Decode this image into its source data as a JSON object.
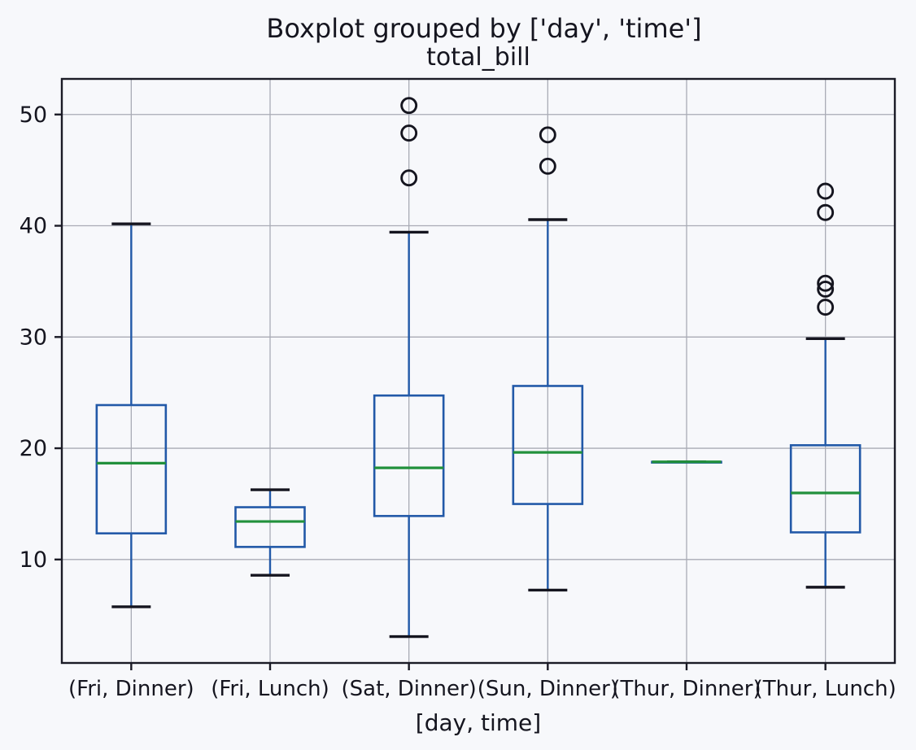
{
  "figure": {
    "title": "Boxplot grouped by ['day', 'time']",
    "subtitle": "total_bill",
    "xlabel": "[day, time]"
  },
  "chart_data": {
    "type": "boxplot",
    "title": "Boxplot grouped by ['day', 'time']",
    "subtitle": "total_bill",
    "xlabel": "[day, time]",
    "ylabel": "",
    "ylim": [
      0.7,
      53.2
    ],
    "yticks": [
      10,
      20,
      30,
      40,
      50
    ],
    "grid": true,
    "legend": "none",
    "categories": [
      "(Fri, Dinner)",
      "(Fri, Lunch)",
      "(Sat, Dinner)",
      "(Sun, Dinner)",
      "(Thur, Dinner)",
      "(Thur, Lunch)"
    ],
    "series": [
      {
        "label": "(Fri, Dinner)",
        "whisker_low": 5.75,
        "q1": 12.35,
        "median": 18.66,
        "q3": 23.88,
        "whisker_high": 40.17,
        "outliers": []
      },
      {
        "label": "(Fri, Lunch)",
        "whisker_low": 8.58,
        "q1": 11.13,
        "median": 13.42,
        "q3": 14.7,
        "whisker_high": 16.27,
        "outliers": []
      },
      {
        "label": "(Sat, Dinner)",
        "whisker_low": 3.07,
        "q1": 13.91,
        "median": 18.24,
        "q3": 24.74,
        "whisker_high": 39.42,
        "outliers": [
          44.3,
          48.33,
          50.81
        ]
      },
      {
        "label": "(Sun, Dinner)",
        "whisker_low": 7.25,
        "q1": 14.99,
        "median": 19.63,
        "q3": 25.6,
        "whisker_high": 40.55,
        "outliers": [
          45.35,
          48.17
        ]
      },
      {
        "label": "(Thur, Dinner)",
        "whisker_low": 18.78,
        "q1": 18.78,
        "median": 18.78,
        "q3": 18.78,
        "whisker_high": 18.78,
        "outliers": []
      },
      {
        "label": "(Thur, Lunch)",
        "whisker_low": 7.51,
        "q1": 12.44,
        "median": 15.98,
        "q3": 20.27,
        "whisker_high": 29.85,
        "outliers": [
          32.68,
          34.3,
          34.83,
          41.19,
          43.11
        ]
      }
    ],
    "colors": {
      "box": "#2259a8",
      "whisker": "#2259a8",
      "median": "#22913c",
      "cap": "#15151f",
      "outlier": "#15151f",
      "grid": "#a9abb5",
      "spine": "#1b1b26",
      "text": "#15151f",
      "background": "#f7f8fb"
    }
  }
}
